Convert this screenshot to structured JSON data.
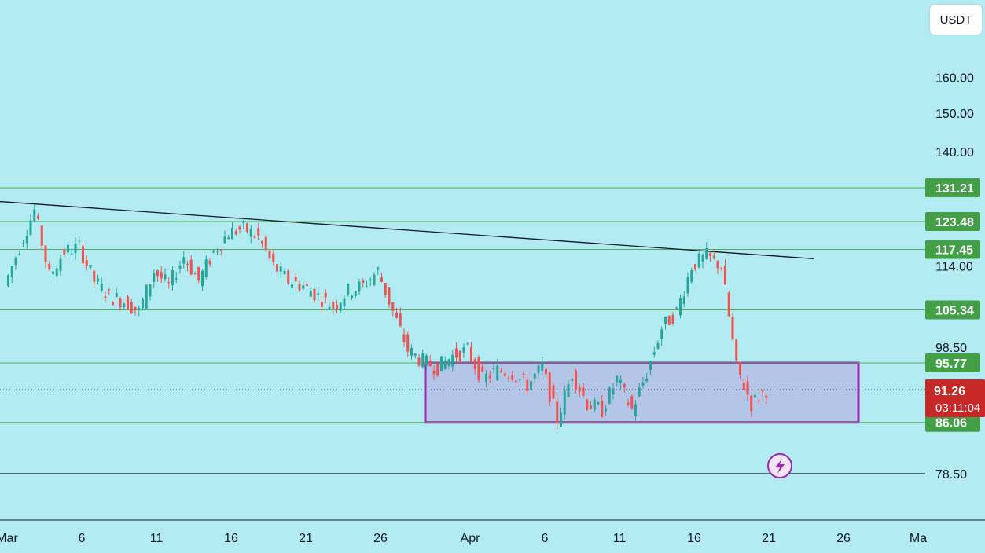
{
  "currency": "USDT",
  "colors": {
    "background": "#b2ebf2",
    "level_line": "#4caf50",
    "level_badge": "#43a047",
    "up_candle": "#26a69a",
    "down_candle": "#ef5350",
    "range_fill": "#b3bfe6",
    "range_border": "#9c27b0",
    "trend_line": "#131722",
    "current_price_badge": "#c62828"
  },
  "current_price": {
    "value": "91.26",
    "countdown": "03:11:04"
  },
  "bolt_icon": "lightning-bolt-icon",
  "chart_data": {
    "type": "candlestick",
    "y_scale": "log",
    "y_tick_labels": [
      "160.00",
      "150.00",
      "140.00",
      "114.00",
      "98.50",
      "78.50"
    ],
    "x_tick_labels": [
      "Mar",
      "6",
      "11",
      "16",
      "21",
      "26",
      "Apr",
      "6",
      "11",
      "16",
      "21",
      "26",
      "Ma"
    ],
    "horizontal_levels": [
      "131.21",
      "123.48",
      "117.45",
      "105.34",
      "95.77",
      "86.06"
    ],
    "baseline_level": "78.50",
    "range_box": {
      "from": "Mar 29",
      "to": "Apr 27",
      "high": 95.77,
      "low": 86.06
    },
    "trend_line": {
      "from": {
        "date": "Mar 1",
        "price": 128
      },
      "to": {
        "date": "Apr 24",
        "price": 115.5
      }
    },
    "daily_closes": [
      {
        "date": "Mar 1",
        "close": 110
      },
      {
        "date": "Mar 2",
        "close": 118
      },
      {
        "date": "Mar 3",
        "close": 126
      },
      {
        "date": "Mar 4",
        "close": 112
      },
      {
        "date": "Mar 5",
        "close": 117
      },
      {
        "date": "Mar 6",
        "close": 118
      },
      {
        "date": "Mar 7",
        "close": 111
      },
      {
        "date": "Mar 8",
        "close": 108
      },
      {
        "date": "Mar 9",
        "close": 107
      },
      {
        "date": "Mar 10",
        "close": 105
      },
      {
        "date": "Mar 11",
        "close": 113
      },
      {
        "date": "Mar 12",
        "close": 110
      },
      {
        "date": "Mar 13",
        "close": 116
      },
      {
        "date": "Mar 14",
        "close": 111
      },
      {
        "date": "Mar 15",
        "close": 117
      },
      {
        "date": "Mar 16",
        "close": 121
      },
      {
        "date": "Mar 17",
        "close": 122
      },
      {
        "date": "Mar 18",
        "close": 120
      },
      {
        "date": "Mar 19",
        "close": 114
      },
      {
        "date": "Mar 20",
        "close": 111
      },
      {
        "date": "Mar 21",
        "close": 110
      },
      {
        "date": "Mar 22",
        "close": 108
      },
      {
        "date": "Mar 23",
        "close": 106
      },
      {
        "date": "Mar 24",
        "close": 109
      },
      {
        "date": "Mar 25",
        "close": 110
      },
      {
        "date": "Mar 26",
        "close": 113
      },
      {
        "date": "Mar 27",
        "close": 105
      },
      {
        "date": "Mar 28",
        "close": 98
      },
      {
        "date": "Mar 29",
        "close": 96
      },
      {
        "date": "Mar 30",
        "close": 95
      },
      {
        "date": "Mar 31",
        "close": 97
      },
      {
        "date": "Apr 1",
        "close": 98
      },
      {
        "date": "Apr 2",
        "close": 93
      },
      {
        "date": "Apr 3",
        "close": 94.5
      },
      {
        "date": "Apr 4",
        "close": 94
      },
      {
        "date": "Apr 5",
        "close": 92
      },
      {
        "date": "Apr 6",
        "close": 95
      },
      {
        "date": "Apr 7",
        "close": 86.5
      },
      {
        "date": "Apr 8",
        "close": 94
      },
      {
        "date": "Apr 9",
        "close": 89
      },
      {
        "date": "Apr 10",
        "close": 88
      },
      {
        "date": "Apr 11",
        "close": 93
      },
      {
        "date": "Apr 12",
        "close": 88
      },
      {
        "date": "Apr 13",
        "close": 94
      },
      {
        "date": "Apr 14",
        "close": 102
      },
      {
        "date": "Apr 15",
        "close": 105
      },
      {
        "date": "Apr 16",
        "close": 114
      },
      {
        "date": "Apr 17",
        "close": 116
      },
      {
        "date": "Apr 18",
        "close": 114
      },
      {
        "date": "Apr 19",
        "close": 95
      },
      {
        "date": "Apr 20",
        "close": 89
      },
      {
        "date": "Apr 21",
        "close": 91.26
      }
    ]
  }
}
